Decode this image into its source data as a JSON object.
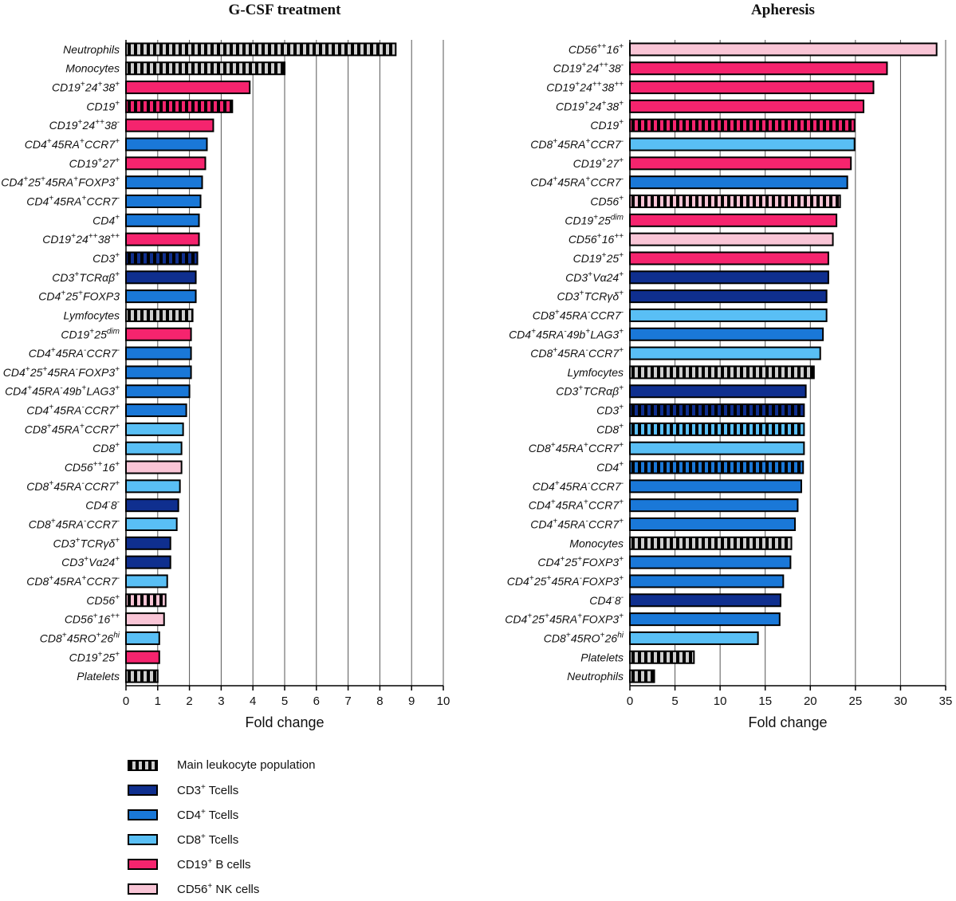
{
  "colors": {
    "main": "#cfcfcf",
    "cd3": "#0f2f8f",
    "cd4": "#1a78d8",
    "cd8": "#59bff5",
    "b": "#f5246e",
    "nk": "#f9c5d6"
  },
  "legend": [
    {
      "key": "main",
      "name": "Main leukocyte population",
      "pattern": "striped"
    },
    {
      "key": "cd3",
      "name": "CD3",
      "sup": "+",
      "suffix": " Tcells"
    },
    {
      "key": "cd4",
      "name": "CD4",
      "sup": "+",
      "suffix": " Tcells"
    },
    {
      "key": "cd8",
      "name": "CD8",
      "sup": "+",
      "suffix": " Tcells"
    },
    {
      "key": "b",
      "name": "CD19",
      "sup": "+",
      "suffix": " B cells"
    },
    {
      "key": "nk",
      "name": "CD56",
      "sup": "+",
      "suffix": " NK cells"
    }
  ],
  "chart_data": [
    {
      "type": "bar",
      "orientation": "horizontal",
      "title": "G-CSF treatment",
      "xlabel": "Fold change",
      "xlim": [
        0,
        10
      ],
      "xticks": [
        0,
        1,
        2,
        3,
        4,
        5,
        6,
        7,
        8,
        9,
        10
      ],
      "bars": [
        {
          "label": [
            [
              "Neutrophils",
              ""
            ]
          ],
          "value": 8.5,
          "color": "main",
          "striped": true
        },
        {
          "label": [
            [
              "Monocytes",
              ""
            ]
          ],
          "value": 5.0,
          "color": "main",
          "striped": true
        },
        {
          "label": [
            [
              "CD19",
              "+"
            ],
            [
              "24",
              "+"
            ],
            [
              "38",
              "+"
            ]
          ],
          "value": 3.9,
          "color": "b"
        },
        {
          "label": [
            [
              "CD19",
              "+"
            ]
          ],
          "value": 3.35,
          "color": "b",
          "striped": true
        },
        {
          "label": [
            [
              "CD19",
              "+"
            ],
            [
              "24",
              "++"
            ],
            [
              "38",
              "-"
            ]
          ],
          "value": 2.75,
          "color": "b"
        },
        {
          "label": [
            [
              "CD4",
              "+"
            ],
            [
              "45RA",
              "+"
            ],
            [
              "CCR7",
              "+"
            ]
          ],
          "value": 2.55,
          "color": "cd4"
        },
        {
          "label": [
            [
              "CD19",
              "+"
            ],
            [
              "27",
              "+"
            ]
          ],
          "value": 2.5,
          "color": "b"
        },
        {
          "label": [
            [
              "CD4",
              "+"
            ],
            [
              "25",
              "+"
            ],
            [
              "45RA",
              "+"
            ],
            [
              "FOXP3",
              "+"
            ]
          ],
          "value": 2.4,
          "color": "cd4"
        },
        {
          "label": [
            [
              "CD4",
              "+"
            ],
            [
              "45RA",
              "+"
            ],
            [
              "CCR7",
              "-"
            ]
          ],
          "value": 2.35,
          "color": "cd4"
        },
        {
          "label": [
            [
              "CD4",
              "+"
            ]
          ],
          "value": 2.3,
          "color": "cd4"
        },
        {
          "label": [
            [
              "CD19",
              "+"
            ],
            [
              "24",
              "++"
            ],
            [
              "38",
              "++"
            ]
          ],
          "value": 2.3,
          "color": "b"
        },
        {
          "label": [
            [
              "CD3",
              "+"
            ]
          ],
          "value": 2.25,
          "color": "cd3",
          "striped": true
        },
        {
          "label": [
            [
              "CD3",
              "+"
            ],
            [
              "TCRαβ",
              "+"
            ]
          ],
          "value": 2.2,
          "color": "cd3"
        },
        {
          "label": [
            [
              "CD4",
              "+"
            ],
            [
              "25",
              "+"
            ],
            [
              "FOXP3",
              ""
            ]
          ],
          "value": 2.2,
          "color": "cd4"
        },
        {
          "label": [
            [
              "Lymfocytes",
              ""
            ]
          ],
          "value": 2.1,
          "color": "main",
          "striped": true
        },
        {
          "label": [
            [
              "CD19",
              "+"
            ],
            [
              "25",
              "dim"
            ]
          ],
          "value": 2.05,
          "color": "b"
        },
        {
          "label": [
            [
              "CD4",
              "+"
            ],
            [
              "45RA",
              "-"
            ],
            [
              "CCR7",
              "-"
            ]
          ],
          "value": 2.05,
          "color": "cd4"
        },
        {
          "label": [
            [
              "CD4",
              "+"
            ],
            [
              "25",
              "+"
            ],
            [
              "45RA",
              "-"
            ],
            [
              "FOXP3",
              "+"
            ]
          ],
          "value": 2.05,
          "color": "cd4"
        },
        {
          "label": [
            [
              "CD4",
              "+"
            ],
            [
              "45RA",
              "-"
            ],
            [
              "49b",
              "+"
            ],
            [
              "LAG3",
              "+"
            ]
          ],
          "value": 2.0,
          "color": "cd4"
        },
        {
          "label": [
            [
              "CD4",
              "+"
            ],
            [
              "45RA",
              "-"
            ],
            [
              "CCR7",
              "+"
            ]
          ],
          "value": 1.9,
          "color": "cd4"
        },
        {
          "label": [
            [
              "CD8",
              "+"
            ],
            [
              "45RA",
              "+"
            ],
            [
              "CCR7",
              "+"
            ]
          ],
          "value": 1.8,
          "color": "cd8"
        },
        {
          "label": [
            [
              "CD8",
              "+"
            ]
          ],
          "value": 1.75,
          "color": "cd8"
        },
        {
          "label": [
            [
              "CD56",
              "++"
            ],
            [
              "16",
              "+"
            ]
          ],
          "value": 1.75,
          "color": "nk"
        },
        {
          "label": [
            [
              "CD8",
              "+"
            ],
            [
              "45RA",
              "-"
            ],
            [
              "CCR7",
              "+"
            ]
          ],
          "value": 1.7,
          "color": "cd8"
        },
        {
          "label": [
            [
              "CD4",
              "-"
            ],
            [
              "8",
              "-"
            ]
          ],
          "value": 1.65,
          "color": "cd3"
        },
        {
          "label": [
            [
              "CD8",
              "+"
            ],
            [
              "45RA",
              "-"
            ],
            [
              "CCR7",
              "-"
            ]
          ],
          "value": 1.6,
          "color": "cd8"
        },
        {
          "label": [
            [
              "CD3",
              "+"
            ],
            [
              "TCRγδ",
              "+"
            ]
          ],
          "value": 1.4,
          "color": "cd3"
        },
        {
          "label": [
            [
              "CD3",
              "+"
            ],
            [
              "Vα24",
              "+"
            ]
          ],
          "value": 1.4,
          "color": "cd3"
        },
        {
          "label": [
            [
              "CD8",
              "+"
            ],
            [
              "45RA",
              "+"
            ],
            [
              "CCR7",
              "-"
            ]
          ],
          "value": 1.3,
          "color": "cd8"
        },
        {
          "label": [
            [
              "CD56",
              "+"
            ]
          ],
          "value": 1.25,
          "color": "nk",
          "striped": true
        },
        {
          "label": [
            [
              "CD56",
              "+"
            ],
            [
              "16",
              "++"
            ]
          ],
          "value": 1.2,
          "color": "nk"
        },
        {
          "label": [
            [
              "CD8",
              "+"
            ],
            [
              "45RO",
              "+"
            ],
            [
              "26",
              "hi"
            ]
          ],
          "value": 1.05,
          "color": "cd8"
        },
        {
          "label": [
            [
              "CD19",
              "+"
            ],
            [
              "25",
              "+"
            ]
          ],
          "value": 1.05,
          "color": "b"
        },
        {
          "label": [
            [
              "Platelets",
              ""
            ]
          ],
          "value": 1.0,
          "color": "main",
          "striped": true
        }
      ]
    },
    {
      "type": "bar",
      "orientation": "horizontal",
      "title": "Apheresis",
      "xlabel": "Fold change",
      "xlim": [
        0,
        35
      ],
      "xticks": [
        0,
        5,
        10,
        15,
        20,
        25,
        30,
        35
      ],
      "bars": [
        {
          "label": [
            [
              "CD56",
              "++"
            ],
            [
              "16",
              "+"
            ]
          ],
          "value": 34.0,
          "color": "nk"
        },
        {
          "label": [
            [
              "CD19",
              "+"
            ],
            [
              "24",
              "++"
            ],
            [
              "38",
              "-"
            ]
          ],
          "value": 28.5,
          "color": "b"
        },
        {
          "label": [
            [
              "CD19",
              "+"
            ],
            [
              "24",
              "++"
            ],
            [
              "38",
              "++"
            ]
          ],
          "value": 27.0,
          "color": "b"
        },
        {
          "label": [
            [
              "CD19",
              "+"
            ],
            [
              "24",
              "+"
            ],
            [
              "38",
              "+"
            ]
          ],
          "value": 25.9,
          "color": "b"
        },
        {
          "label": [
            [
              "CD19",
              "+"
            ]
          ],
          "value": 24.9,
          "color": "b",
          "striped": true
        },
        {
          "label": [
            [
              "CD8",
              "+"
            ],
            [
              "45RA",
              "+"
            ],
            [
              "CCR7",
              "-"
            ]
          ],
          "value": 24.9,
          "color": "cd8"
        },
        {
          "label": [
            [
              "CD19",
              "+"
            ],
            [
              "27",
              "+"
            ]
          ],
          "value": 24.5,
          "color": "b"
        },
        {
          "label": [
            [
              "CD4",
              "+"
            ],
            [
              "45RA",
              "+"
            ],
            [
              "CCR7",
              "-"
            ]
          ],
          "value": 24.1,
          "color": "cd4"
        },
        {
          "label": [
            [
              "CD56",
              "+"
            ]
          ],
          "value": 23.3,
          "color": "nk",
          "striped": true
        },
        {
          "label": [
            [
              "CD19",
              "+"
            ],
            [
              "25",
              "dim"
            ]
          ],
          "value": 22.9,
          "color": "b"
        },
        {
          "label": [
            [
              "CD56",
              "+"
            ],
            [
              "16",
              "++"
            ]
          ],
          "value": 22.5,
          "color": "nk"
        },
        {
          "label": [
            [
              "CD19",
              "+"
            ],
            [
              "25",
              "+"
            ]
          ],
          "value": 22.0,
          "color": "b"
        },
        {
          "label": [
            [
              "CD3",
              "+"
            ],
            [
              " Vα24",
              "+"
            ]
          ],
          "value": 22.0,
          "color": "cd3"
        },
        {
          "label": [
            [
              "CD3",
              "+"
            ],
            [
              "TCRγδ",
              "+"
            ]
          ],
          "value": 21.8,
          "color": "cd3"
        },
        {
          "label": [
            [
              "CD8",
              "+"
            ],
            [
              "45RA",
              "-"
            ],
            [
              "CCR7",
              "-"
            ]
          ],
          "value": 21.8,
          "color": "cd8"
        },
        {
          "label": [
            [
              "CD4",
              "+"
            ],
            [
              "45RA",
              "-"
            ],
            [
              "49b",
              "+"
            ],
            [
              "LAG3",
              "+"
            ]
          ],
          "value": 21.4,
          "color": "cd4"
        },
        {
          "label": [
            [
              "CD8",
              "+"
            ],
            [
              "45RA",
              "-"
            ],
            [
              "CCR7",
              "+"
            ]
          ],
          "value": 21.1,
          "color": "cd8"
        },
        {
          "label": [
            [
              "Lymfocytes",
              ""
            ]
          ],
          "value": 20.4,
          "color": "main",
          "striped": true
        },
        {
          "label": [
            [
              "CD3",
              "+"
            ],
            [
              "TCRαβ",
              "+"
            ]
          ],
          "value": 19.5,
          "color": "cd3"
        },
        {
          "label": [
            [
              "CD3",
              "+"
            ]
          ],
          "value": 19.3,
          "color": "cd3",
          "striped": true
        },
        {
          "label": [
            [
              "CD8",
              "+"
            ]
          ],
          "value": 19.3,
          "color": "cd8",
          "striped": true
        },
        {
          "label": [
            [
              "CD8",
              "+"
            ],
            [
              "45RA",
              "+"
            ],
            [
              "CCR7",
              "+"
            ]
          ],
          "value": 19.3,
          "color": "cd8"
        },
        {
          "label": [
            [
              "CD4",
              "+"
            ]
          ],
          "value": 19.2,
          "color": "cd4",
          "striped": true
        },
        {
          "label": [
            [
              "CD4",
              "+"
            ],
            [
              "45RA",
              "-"
            ],
            [
              "CCR7",
              "-"
            ]
          ],
          "value": 19.0,
          "color": "cd4"
        },
        {
          "label": [
            [
              "CD4",
              "+"
            ],
            [
              "45RA",
              "+"
            ],
            [
              "CCR7",
              "+"
            ]
          ],
          "value": 18.6,
          "color": "cd4"
        },
        {
          "label": [
            [
              "CD4",
              "+"
            ],
            [
              "45RA",
              "-"
            ],
            [
              "CCR7",
              "+"
            ]
          ],
          "value": 18.3,
          "color": "cd4"
        },
        {
          "label": [
            [
              "Monocytes",
              ""
            ]
          ],
          "value": 17.9,
          "color": "main",
          "striped": true
        },
        {
          "label": [
            [
              "CD4",
              "+"
            ],
            [
              "25",
              "+"
            ],
            [
              "FOXP3",
              "+"
            ]
          ],
          "value": 17.8,
          "color": "cd4"
        },
        {
          "label": [
            [
              "CD4",
              "+"
            ],
            [
              "25",
              "+"
            ],
            [
              "45RA",
              "-"
            ],
            [
              "FOXP3",
              "+"
            ]
          ],
          "value": 17.0,
          "color": "cd4"
        },
        {
          "label": [
            [
              "CD4",
              "-"
            ],
            [
              "8",
              "-"
            ]
          ],
          "value": 16.7,
          "color": "cd3"
        },
        {
          "label": [
            [
              "CD4",
              "+"
            ],
            [
              "25",
              "+"
            ],
            [
              "45RA",
              "+"
            ],
            [
              "FOXP3",
              "+"
            ]
          ],
          "value": 16.6,
          "color": "cd4"
        },
        {
          "label": [
            [
              "CD8",
              "+"
            ],
            [
              "45RO",
              "+"
            ],
            [
              "26",
              "hi"
            ]
          ],
          "value": 14.2,
          "color": "cd8"
        },
        {
          "label": [
            [
              "Platelets",
              ""
            ]
          ],
          "value": 7.1,
          "color": "main",
          "striped": true
        },
        {
          "label": [
            [
              "Neutrophils",
              ""
            ]
          ],
          "value": 2.7,
          "color": "main",
          "striped": true
        }
      ]
    }
  ]
}
